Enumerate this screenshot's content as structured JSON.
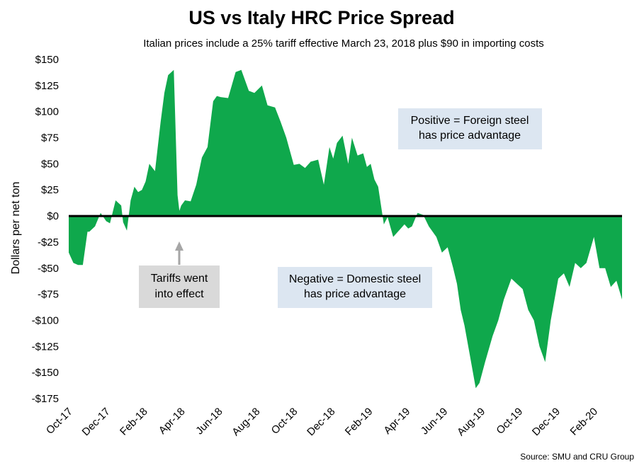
{
  "chart_data": {
    "type": "area",
    "title": "US vs Italy HRC Price Spread",
    "subtitle": "Italian prices include a 25% tariff effective March 23, 2018 plus $90 in importing costs",
    "ylabel": "Dollars per net ton",
    "xlabel": "",
    "ylim": [
      -175,
      150
    ],
    "y_ticks": [
      150,
      125,
      100,
      75,
      50,
      25,
      0,
      -25,
      -50,
      -75,
      -100,
      -125,
      -150,
      -175
    ],
    "y_tick_labels": [
      "$150",
      "$125",
      "$100",
      "$75",
      "$50",
      "$25",
      "$0",
      "-$25",
      "-$50",
      "-$75",
      "-$100",
      "-$125",
      "-$150",
      "-$175"
    ],
    "x_range": [
      0,
      29.5
    ],
    "x_tick_positions": [
      0,
      2,
      4,
      6,
      8,
      10,
      12,
      14,
      16,
      18,
      20,
      22,
      24,
      26,
      28
    ],
    "x_tick_labels": [
      "Oct-17",
      "Dec-17",
      "Feb-18",
      "Apr-18",
      "Jun-18",
      "Aug-18",
      "Oct-18",
      "Dec-18",
      "Feb-19",
      "Apr-19",
      "Jun-19",
      "Aug-19",
      "Oct-19",
      "Dec-19",
      "Feb-20"
    ],
    "fill_color": "#0fa84c",
    "zero_line_color": "#000000",
    "series": [
      {
        "name": "US vs Italy HRC price spread",
        "x": [
          0,
          0.25,
          0.5,
          0.75,
          1.0,
          1.1,
          1.4,
          1.7,
          2.0,
          2.2,
          2.5,
          2.8,
          2.9,
          3.1,
          3.3,
          3.5,
          3.7,
          3.9,
          4.1,
          4.3,
          4.6,
          4.9,
          5.1,
          5.3,
          5.6,
          5.8,
          5.9,
          6.0,
          6.2,
          6.5,
          6.8,
          7.1,
          7.4,
          7.7,
          7.9,
          8.1,
          8.5,
          8.9,
          9.2,
          9.6,
          9.9,
          10.3,
          10.6,
          11.0,
          11.3,
          11.6,
          12.0,
          12.3,
          12.6,
          12.9,
          13.3,
          13.6,
          13.9,
          14.1,
          14.3,
          14.6,
          14.9,
          15.1,
          15.4,
          15.7,
          15.9,
          16.1,
          16.3,
          16.5,
          16.8,
          17.0,
          17.3,
          17.6,
          17.9,
          18.1,
          18.3,
          18.6,
          18.9,
          19.2,
          19.6,
          19.9,
          20.2,
          20.5,
          20.7,
          20.9,
          21.1,
          21.4,
          21.7,
          21.9,
          22.2,
          22.6,
          22.9,
          23.2,
          23.6,
          23.9,
          24.2,
          24.5,
          24.8,
          25.1,
          25.4,
          25.7,
          26.1,
          26.4,
          26.7,
          27.0,
          27.3,
          27.6,
          28.0,
          28.3,
          28.6,
          28.9,
          29.2,
          29.5
        ],
        "y": [
          -35,
          -45,
          -47,
          -47,
          -15,
          -15,
          -10,
          3,
          -5,
          -7,
          15,
          10,
          -6,
          -14,
          15,
          28,
          23,
          25,
          33,
          50,
          43,
          90,
          118,
          135,
          140,
          20,
          5,
          10,
          15,
          14,
          30,
          56,
          66,
          110,
          115,
          114,
          113,
          138,
          140,
          120,
          118,
          125,
          106,
          104,
          90,
          75,
          49,
          50,
          46,
          52,
          54,
          30,
          66,
          55,
          70,
          77,
          50,
          75,
          58,
          60,
          47,
          50,
          35,
          28,
          -8,
          -1,
          -20,
          -14,
          -8,
          -12,
          -10,
          3,
          1,
          -10,
          -20,
          -35,
          -30,
          -50,
          -65,
          -90,
          -105,
          -135,
          -165,
          -160,
          -140,
          -115,
          -100,
          -80,
          -60,
          -65,
          -70,
          -90,
          -100,
          -125,
          -140,
          -100,
          -60,
          -55,
          -68,
          -45,
          -50,
          -45,
          -20,
          -50,
          -50,
          -68,
          -62,
          -80
        ]
      }
    ],
    "annotations": {
      "positive_box": {
        "line1": "Positive = Foreign steel",
        "line2": "has price advantage",
        "fill": "#dce6f1"
      },
      "negative_box": {
        "line1": "Negative = Domestic steel",
        "line2": "has price advantage",
        "fill": "#dce6f1"
      },
      "tariff_box": {
        "line1": "Tariffs went",
        "line2": "into effect",
        "fill": "#d9d9d9",
        "arrow_color": "#a6a6a6"
      }
    },
    "source": "Source: SMU and CRU Group",
    "grid": false
  }
}
